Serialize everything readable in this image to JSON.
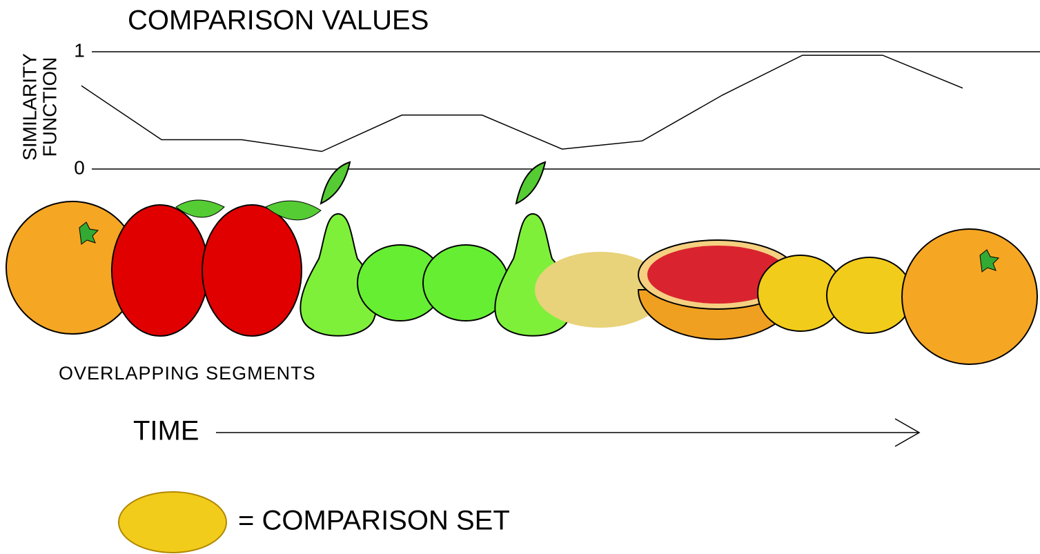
{
  "chart_data": {
    "type": "line",
    "title": "COMPARISON VALUES",
    "ylabel": [
      "SIMILARITY",
      "FUNCTION"
    ],
    "categories": [
      null,
      null,
      null,
      null,
      null,
      null,
      null,
      null,
      null,
      null,
      null,
      null
    ],
    "values": [
      0.71,
      0.25,
      0.25,
      0.15,
      0.46,
      0.46,
      0.17,
      0.24,
      0.63,
      0.97,
      0.97,
      0.69
    ],
    "color": "#000000",
    "ylim": [
      0,
      1
    ],
    "yticks": [
      0,
      1
    ],
    "grid": true,
    "annotations": [
      "OVERLAPPING SEGMENTS",
      "TIME",
      "= COMPARISON SET"
    ]
  }
}
